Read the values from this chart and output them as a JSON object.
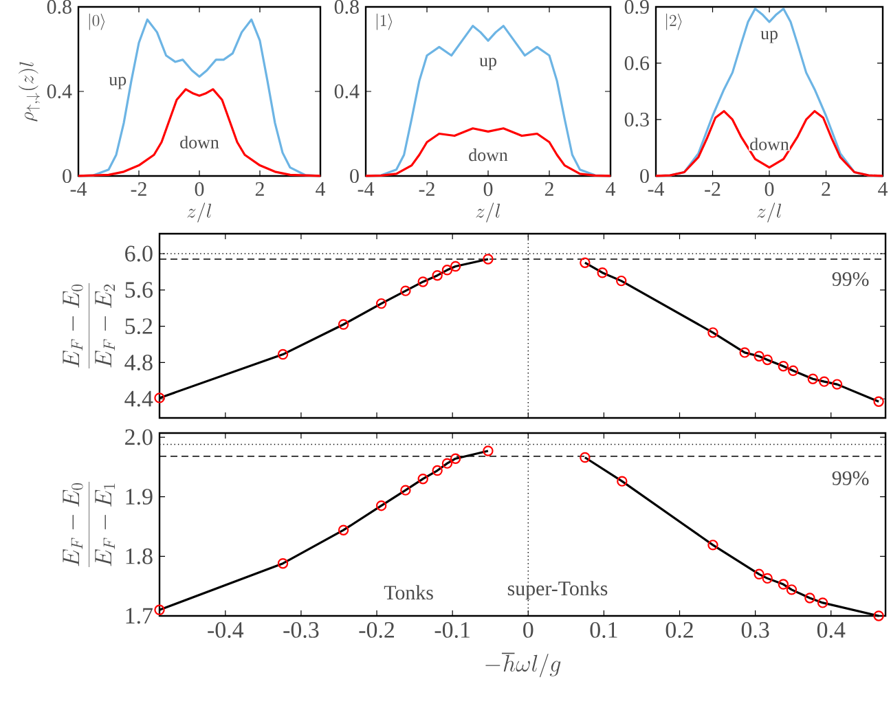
{
  "chart_data": [
    {
      "type": "line",
      "xlabel": "z/l",
      "ylabel": "\\rho_{\\uparrow,\\downarrow}(z)l",
      "xlim": [
        -4,
        4
      ],
      "ylim": [
        0,
        0.8
      ],
      "xticks": [
        -4,
        -2,
        0,
        2,
        4
      ],
      "yticks": [
        0,
        0.4,
        0.8
      ],
      "annotations": [
        "|0\\rangle"
      ],
      "series": [
        {
          "name": "up",
          "color": "#6cb4e4",
          "x": [
            -4,
            -3.5,
            -3,
            -2.75,
            -2.5,
            -2.25,
            -2,
            -1.72,
            -1.4,
            -1.1,
            -0.8,
            -0.55,
            -0.25,
            0,
            0.25,
            0.55,
            0.8,
            1.1,
            1.4,
            1.72,
            2,
            2.25,
            2.5,
            2.75,
            3,
            3.5,
            4
          ],
          "values": [
            0,
            0.003,
            0.03,
            0.1,
            0.25,
            0.45,
            0.63,
            0.74,
            0.68,
            0.57,
            0.54,
            0.55,
            0.5,
            0.47,
            0.5,
            0.55,
            0.55,
            0.58,
            0.68,
            0.74,
            0.64,
            0.45,
            0.25,
            0.11,
            0.04,
            0.004,
            0
          ]
        },
        {
          "name": "down",
          "color": "#ff0000",
          "x": [
            -4,
            -3,
            -2.5,
            -2,
            -1.5,
            -1.25,
            -1,
            -0.75,
            -0.45,
            -0.2,
            0,
            0.2,
            0.45,
            0.75,
            1,
            1.25,
            1.5,
            2,
            2.5,
            3,
            4
          ],
          "values": [
            0,
            0.005,
            0.02,
            0.05,
            0.1,
            0.16,
            0.26,
            0.36,
            0.41,
            0.39,
            0.38,
            0.39,
            0.41,
            0.36,
            0.26,
            0.16,
            0.1,
            0.05,
            0.02,
            0.005,
            0
          ]
        }
      ]
    },
    {
      "type": "line",
      "xlabel": "z/l",
      "xlim": [
        -4,
        4
      ],
      "ylim": [
        0,
        0.8
      ],
      "xticks": [
        -4,
        -2,
        0,
        2,
        4
      ],
      "yticks": [
        0,
        0.4,
        0.8
      ],
      "annotations": [
        "|1\\rangle"
      ],
      "series": [
        {
          "name": "up",
          "color": "#6cb4e4",
          "x": [
            -4,
            -3.5,
            -3,
            -2.75,
            -2.5,
            -2.25,
            -2,
            -1.6,
            -1.2,
            -0.85,
            -0.5,
            -0.25,
            0,
            0.25,
            0.5,
            0.85,
            1.2,
            1.6,
            2,
            2.25,
            2.5,
            2.75,
            3,
            3.5,
            4
          ],
          "values": [
            0,
            0.003,
            0.03,
            0.1,
            0.27,
            0.45,
            0.57,
            0.61,
            0.57,
            0.64,
            0.71,
            0.68,
            0.64,
            0.68,
            0.71,
            0.64,
            0.57,
            0.61,
            0.57,
            0.45,
            0.27,
            0.1,
            0.03,
            0.003,
            0
          ]
        },
        {
          "name": "down",
          "color": "#ff0000",
          "x": [
            -4,
            -3.5,
            -3,
            -2.5,
            -2.25,
            -2,
            -1.6,
            -1.1,
            -0.5,
            0,
            0.5,
            1.1,
            1.6,
            2,
            2.25,
            2.5,
            3,
            3.5,
            4
          ],
          "values": [
            0,
            0.002,
            0.01,
            0.05,
            0.1,
            0.16,
            0.2,
            0.19,
            0.225,
            0.21,
            0.225,
            0.19,
            0.2,
            0.16,
            0.1,
            0.05,
            0.01,
            0.002,
            0
          ]
        }
      ]
    },
    {
      "type": "line",
      "xlabel": "z/l",
      "xlim": [
        -4,
        4
      ],
      "ylim": [
        0,
        0.9
      ],
      "xticks": [
        -4,
        -2,
        0,
        2,
        4
      ],
      "yticks": [
        0,
        0.3,
        0.6,
        0.9
      ],
      "annotations": [
        "|2\\rangle"
      ],
      "series": [
        {
          "name": "up",
          "color": "#6cb4e4",
          "x": [
            -4,
            -3.5,
            -3,
            -2.5,
            -2,
            -1.6,
            -1.3,
            -1,
            -0.75,
            -0.5,
            -0.25,
            0,
            0.25,
            0.5,
            0.75,
            1,
            1.3,
            1.6,
            2,
            2.5,
            3,
            3.5,
            4
          ],
          "values": [
            0,
            0.003,
            0.02,
            0.12,
            0.32,
            0.46,
            0.55,
            0.7,
            0.82,
            0.89,
            0.86,
            0.82,
            0.86,
            0.89,
            0.82,
            0.7,
            0.55,
            0.46,
            0.32,
            0.12,
            0.02,
            0.003,
            0
          ]
        },
        {
          "name": "down",
          "color": "#ff0000",
          "x": [
            -4,
            -3.5,
            -3,
            -2.5,
            -2.2,
            -1.9,
            -1.6,
            -1.3,
            -1,
            -0.5,
            0,
            0.5,
            1,
            1.3,
            1.6,
            1.9,
            2.2,
            2.5,
            3,
            3.5,
            4
          ],
          "values": [
            0,
            0.003,
            0.02,
            0.1,
            0.2,
            0.31,
            0.345,
            0.3,
            0.21,
            0.09,
            0.045,
            0.09,
            0.21,
            0.3,
            0.345,
            0.31,
            0.2,
            0.1,
            0.02,
            0.003,
            0
          ]
        }
      ]
    },
    {
      "type": "line",
      "ylabel": "\\frac{E_F - E_0}{E_F - E_2}",
      "xlim": [
        -0.487,
        0.472
      ],
      "ylim": [
        4.19,
        6.22
      ],
      "xticks": [
        -0.4,
        -0.3,
        -0.2,
        -0.1,
        0,
        0.1,
        0.2,
        0.3,
        0.4
      ],
      "yticks": [
        {
          "value": 4.4,
          "label": "4.4"
        },
        {
          "value": 4.8,
          "label": "4.8"
        },
        {
          "value": 5.2,
          "label": "5.2"
        },
        {
          "value": 5.6,
          "label": "5.6"
        },
        {
          "value": 6.0,
          "label": "6.0"
        }
      ],
      "tick_labels": "y",
      "annotations": [
        "99%"
      ],
      "ref_lines": [
        {
          "axis": "y",
          "value": 6.0,
          "line_style": "dotted"
        },
        {
          "axis": "y",
          "value": 5.94,
          "line_style": "dashed"
        },
        {
          "axis": "x",
          "value": 0,
          "line_style": "dotted"
        }
      ],
      "series": [
        {
          "type": "line",
          "color": "#000000",
          "x": [
            -0.487,
            -0.324,
            -0.244,
            -0.194,
            -0.162,
            -0.139,
            -0.12,
            -0.107,
            -0.096,
            -0.053
          ],
          "values": [
            4.41,
            4.89,
            5.22,
            5.45,
            5.59,
            5.69,
            5.76,
            5.82,
            5.86,
            5.94
          ]
        },
        {
          "type": "line",
          "color": "#000000",
          "x": [
            0.075,
            0.098,
            0.123,
            0.244,
            0.286,
            0.305,
            0.316,
            0.337,
            0.35,
            0.376,
            0.391,
            0.408,
            0.463
          ],
          "values": [
            5.9,
            5.79,
            5.7,
            5.13,
            4.91,
            4.87,
            4.83,
            4.76,
            4.71,
            4.62,
            4.59,
            4.56,
            4.37
          ]
        },
        {
          "type": "scatter",
          "color": "#ff0000",
          "marker": "circle",
          "x": [
            -0.487,
            -0.324,
            -0.244,
            -0.194,
            -0.162,
            -0.139,
            -0.12,
            -0.107,
            -0.096,
            -0.053,
            0.075,
            0.098,
            0.123,
            0.244,
            0.286,
            0.305,
            0.316,
            0.337,
            0.35,
            0.376,
            0.391,
            0.408,
            0.463
          ],
          "values": [
            4.41,
            4.89,
            5.22,
            5.45,
            5.59,
            5.69,
            5.76,
            5.82,
            5.86,
            5.94,
            5.9,
            5.79,
            5.7,
            5.13,
            4.91,
            4.87,
            4.83,
            4.76,
            4.71,
            4.62,
            4.59,
            4.56,
            4.37
          ]
        }
      ]
    },
    {
      "type": "line",
      "xlabel": "-\\hbar\\omega l/g",
      "ylabel": "\\frac{E_F - E_0}{E_F - E_1}",
      "xlim": [
        -0.487,
        0.472
      ],
      "ylim": [
        1.7,
        2.007
      ],
      "xticks": [
        -0.4,
        -0.3,
        -0.2,
        -0.1,
        0,
        0.1,
        0.2,
        0.3,
        0.4
      ],
      "yticks": [
        1.7,
        1.8,
        1.9,
        {
          "value": 2.0,
          "label": "2.0"
        }
      ],
      "annotations": [
        "99%",
        "Tonks",
        "super-Tonks"
      ],
      "ref_lines": [
        {
          "axis": "y",
          "value": 1.988,
          "line_style": "dotted"
        },
        {
          "axis": "y",
          "value": 1.968,
          "line_style": "dashed"
        },
        {
          "axis": "x",
          "value": 0,
          "line_style": "dotted"
        }
      ],
      "series": [
        {
          "type": "line",
          "color": "#000000",
          "x": [
            -0.487,
            -0.324,
            -0.244,
            -0.194,
            -0.162,
            -0.139,
            -0.12,
            -0.107,
            -0.096,
            -0.053
          ],
          "values": [
            1.71,
            1.788,
            1.844,
            1.885,
            1.911,
            1.93,
            1.944,
            1.956,
            1.964,
            1.977
          ]
        },
        {
          "type": "line",
          "color": "#000000",
          "x": [
            0.075,
            0.124,
            0.244,
            0.305,
            0.316,
            0.337,
            0.348,
            0.372,
            0.389,
            0.463
          ],
          "values": [
            1.966,
            1.926,
            1.819,
            1.77,
            1.763,
            1.753,
            1.744,
            1.73,
            1.722,
            1.7
          ]
        },
        {
          "type": "scatter",
          "color": "#ff0000",
          "marker": "circle",
          "x": [
            -0.487,
            -0.324,
            -0.244,
            -0.194,
            -0.162,
            -0.139,
            -0.12,
            -0.107,
            -0.096,
            -0.053,
            0.075,
            0.124,
            0.244,
            0.305,
            0.316,
            0.337,
            0.348,
            0.372,
            0.389,
            0.463
          ],
          "values": [
            1.71,
            1.788,
            1.844,
            1.885,
            1.911,
            1.93,
            1.944,
            1.956,
            1.964,
            1.977,
            1.966,
            1.926,
            1.819,
            1.77,
            1.763,
            1.753,
            1.744,
            1.73,
            1.722,
            1.7
          ]
        }
      ]
    }
  ]
}
